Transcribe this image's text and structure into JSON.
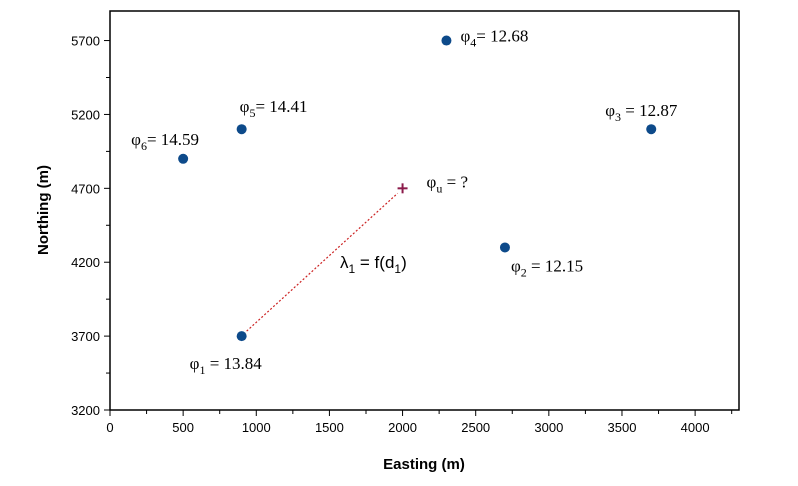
{
  "chart_data": {
    "type": "scatter",
    "title": "",
    "xlabel": "Easting (m)",
    "ylabel": "Northing (m)",
    "xlim": [
      0,
      4300
    ],
    "ylim": [
      3200,
      5900
    ],
    "x_ticks": [
      0,
      500,
      1000,
      1500,
      2000,
      2500,
      3000,
      3500,
      4000
    ],
    "y_ticks": [
      3200,
      3700,
      4200,
      4700,
      5200,
      5700
    ],
    "grid": false,
    "colors": {
      "point": "#0d4a8a",
      "unknown": "#8b1a4a",
      "line": "#cc2222"
    },
    "points": [
      {
        "id": "1",
        "symbol": "φ",
        "sub": "1",
        "value_text": " = 13.84",
        "x": 900,
        "y": 3700
      },
      {
        "id": "2",
        "symbol": "φ",
        "sub": "2",
        "value_text": " = 12.15",
        "x": 2700,
        "y": 4300
      },
      {
        "id": "3",
        "symbol": "φ",
        "sub": "3",
        "value_text": " = 12.87",
        "x": 3700,
        "y": 5100
      },
      {
        "id": "4",
        "symbol": "φ",
        "sub": "4",
        "value_text": "= 12.68",
        "x": 2300,
        "y": 5700
      },
      {
        "id": "5",
        "symbol": "φ",
        "sub": "5",
        "value_text": "= 14.41",
        "x": 900,
        "y": 5100
      },
      {
        "id": "6",
        "symbol": "φ",
        "sub": "6",
        "value_text": "= 14.59",
        "x": 500,
        "y": 4900
      }
    ],
    "unknown": {
      "symbol": "φ",
      "sub": "u",
      "value_text": " = ?",
      "x": 2000,
      "y": 4700
    },
    "annotation": {
      "symbol": "λ",
      "sub": "1",
      "mid": " = f(d",
      "sub2": "1",
      "end": ")"
    }
  }
}
